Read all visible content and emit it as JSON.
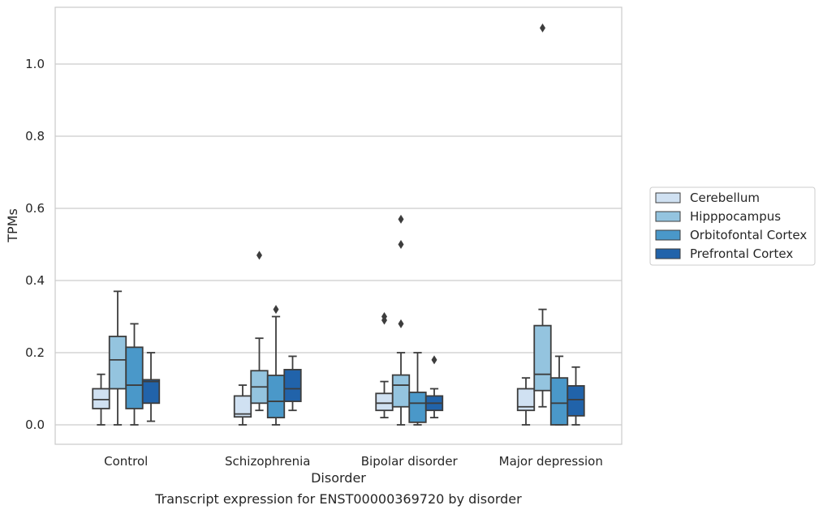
{
  "chart_data": {
    "type": "box",
    "xlabel": "Disorder",
    "ylabel": "TPMs",
    "caption": "Transcript expression for ENST00000369720 by disorder",
    "ylim": [
      -0.053,
      1.164
    ],
    "yticks": [
      0.0,
      0.2,
      0.4,
      0.6,
      0.8,
      1.0
    ],
    "yticklabels": [
      "0.0",
      "0.2",
      "0.4",
      "0.6",
      "0.8",
      "1.0"
    ],
    "grid": "horizontal",
    "legend_position": "right",
    "categories": [
      "Control",
      "Schizophrenia",
      "Bipolar disorder",
      "Major depression"
    ],
    "series": [
      {
        "name": "Cerebellum",
        "color": "#d0e1f2",
        "boxes": [
          {
            "whisker_low": 0.0,
            "q1": 0.045,
            "median": 0.07,
            "q3": 0.1,
            "whisker_high": 0.14,
            "outliers": []
          },
          {
            "whisker_low": 0.0,
            "q1": 0.022,
            "median": 0.03,
            "q3": 0.08,
            "whisker_high": 0.11,
            "outliers": []
          },
          {
            "whisker_low": 0.02,
            "q1": 0.04,
            "median": 0.06,
            "q3": 0.087,
            "whisker_high": 0.12,
            "outliers": [
              0.29,
              0.3
            ]
          },
          {
            "whisker_low": 0.0,
            "q1": 0.04,
            "median": 0.05,
            "q3": 0.1,
            "whisker_high": 0.13,
            "outliers": []
          }
        ]
      },
      {
        "name": "Hipppocampus",
        "color": "#94c4df",
        "boxes": [
          {
            "whisker_low": 0.0,
            "q1": 0.1,
            "median": 0.18,
            "q3": 0.245,
            "whisker_high": 0.37,
            "outliers": []
          },
          {
            "whisker_low": 0.04,
            "q1": 0.06,
            "median": 0.105,
            "q3": 0.15,
            "whisker_high": 0.24,
            "outliers": [
              0.47
            ]
          },
          {
            "whisker_low": 0.0,
            "q1": 0.05,
            "median": 0.11,
            "q3": 0.138,
            "whisker_high": 0.2,
            "outliers": [
              0.5,
              0.57,
              0.28
            ]
          },
          {
            "whisker_low": 0.05,
            "q1": 0.095,
            "median": 0.14,
            "q3": 0.275,
            "whisker_high": 0.32,
            "outliers": [
              1.1
            ]
          }
        ]
      },
      {
        "name": "Orbitofontal Cortex",
        "color": "#4a98c9",
        "boxes": [
          {
            "whisker_low": 0.0,
            "q1": 0.045,
            "median": 0.11,
            "q3": 0.215,
            "whisker_high": 0.28,
            "outliers": []
          },
          {
            "whisker_low": 0.0,
            "q1": 0.02,
            "median": 0.065,
            "q3": 0.137,
            "whisker_high": 0.3,
            "outliers": [
              0.32
            ]
          },
          {
            "whisker_low": 0.0,
            "q1": 0.007,
            "median": 0.06,
            "q3": 0.09,
            "whisker_high": 0.2,
            "outliers": []
          },
          {
            "whisker_low": 0.0,
            "q1": 0.0,
            "median": 0.06,
            "q3": 0.13,
            "whisker_high": 0.19,
            "outliers": []
          }
        ]
      },
      {
        "name": "Prefrontal Cortex",
        "color": "#2163aa",
        "boxes": [
          {
            "whisker_low": 0.01,
            "q1": 0.06,
            "median": 0.12,
            "q3": 0.125,
            "whisker_high": 0.2,
            "outliers": []
          },
          {
            "whisker_low": 0.04,
            "q1": 0.065,
            "median": 0.1,
            "q3": 0.153,
            "whisker_high": 0.19,
            "outliers": []
          },
          {
            "whisker_low": 0.02,
            "q1": 0.04,
            "median": 0.06,
            "q3": 0.08,
            "whisker_high": 0.1,
            "outliers": [
              0.18
            ]
          },
          {
            "whisker_low": 0.0,
            "q1": 0.025,
            "median": 0.07,
            "q3": 0.108,
            "whisker_high": 0.16,
            "outliers": []
          }
        ]
      }
    ]
  }
}
